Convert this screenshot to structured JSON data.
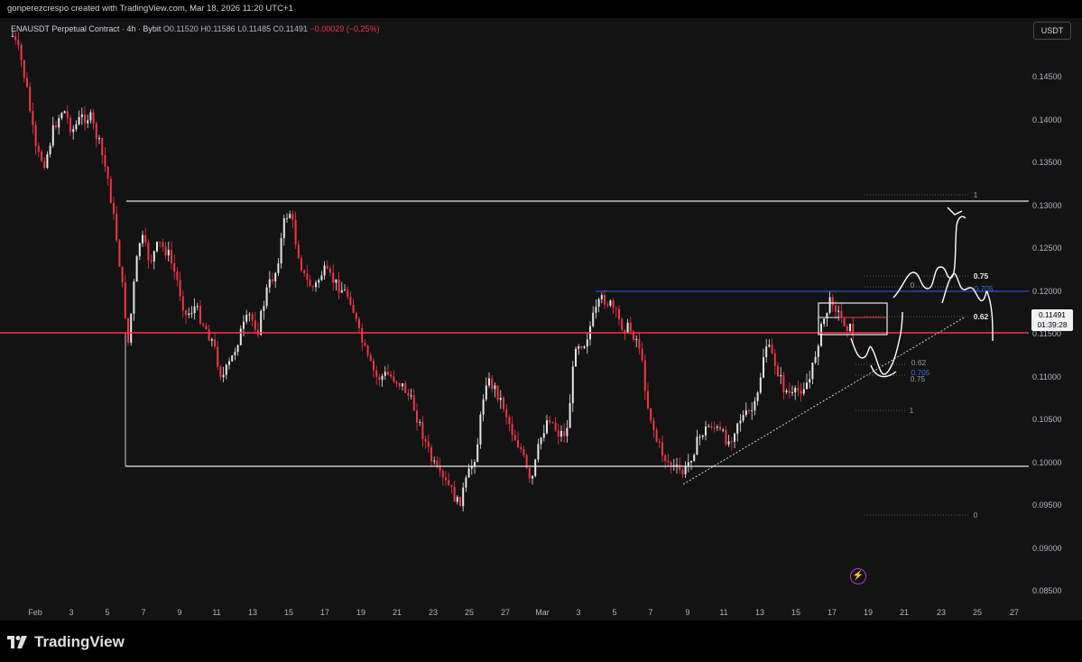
{
  "header": {
    "creator_text": "gonperezcrespo created with TradingView.com, Mar 18, 2026 11:20 UTC+1"
  },
  "legend": {
    "symbol": "ENAUSDT Perpetual Contract · 4h · Bybit",
    "open": "O0.11520",
    "high": "H0.11586",
    "low": "L0.11485",
    "close": "C0.11491",
    "change": "−0.00029 (−0.25%)"
  },
  "currency_button": "USDT",
  "price_axis": [
    "0.14500",
    "0.14000",
    "0.13500",
    "0.13000",
    "0.12500",
    "0.12000",
    "0.11500",
    "0.11000",
    "0.10500",
    "0.10000",
    "0.09500",
    "0.09000",
    "0.08500"
  ],
  "time_axis": [
    "Feb",
    "3",
    "5",
    "7",
    "9",
    "11",
    "13",
    "15",
    "17",
    "19",
    "21",
    "23",
    "25",
    "27",
    "Mar",
    "3",
    "5",
    "7",
    "9",
    "11",
    "13",
    "15",
    "17",
    "19",
    "21",
    "23",
    "25",
    "27"
  ],
  "last_price": {
    "price": "0.11491",
    "countdown": "01:39:28"
  },
  "fib_upper": {
    "label_1": "1",
    "label_075": "0.75",
    "label_0705": "0.705",
    "label_062": "0.62",
    "label_0": "0"
  },
  "fib_lower": {
    "label_062": "0.62",
    "label_0705": "0.705",
    "label_075": "0.75",
    "label_1": "1",
    "label_0": "0"
  },
  "brand": "TradingView",
  "colors": {
    "up": "#e6e6e6",
    "down": "#f23645",
    "background": "#131313",
    "blue_line": "#2962ff",
    "red_line": "#f23645"
  }
}
